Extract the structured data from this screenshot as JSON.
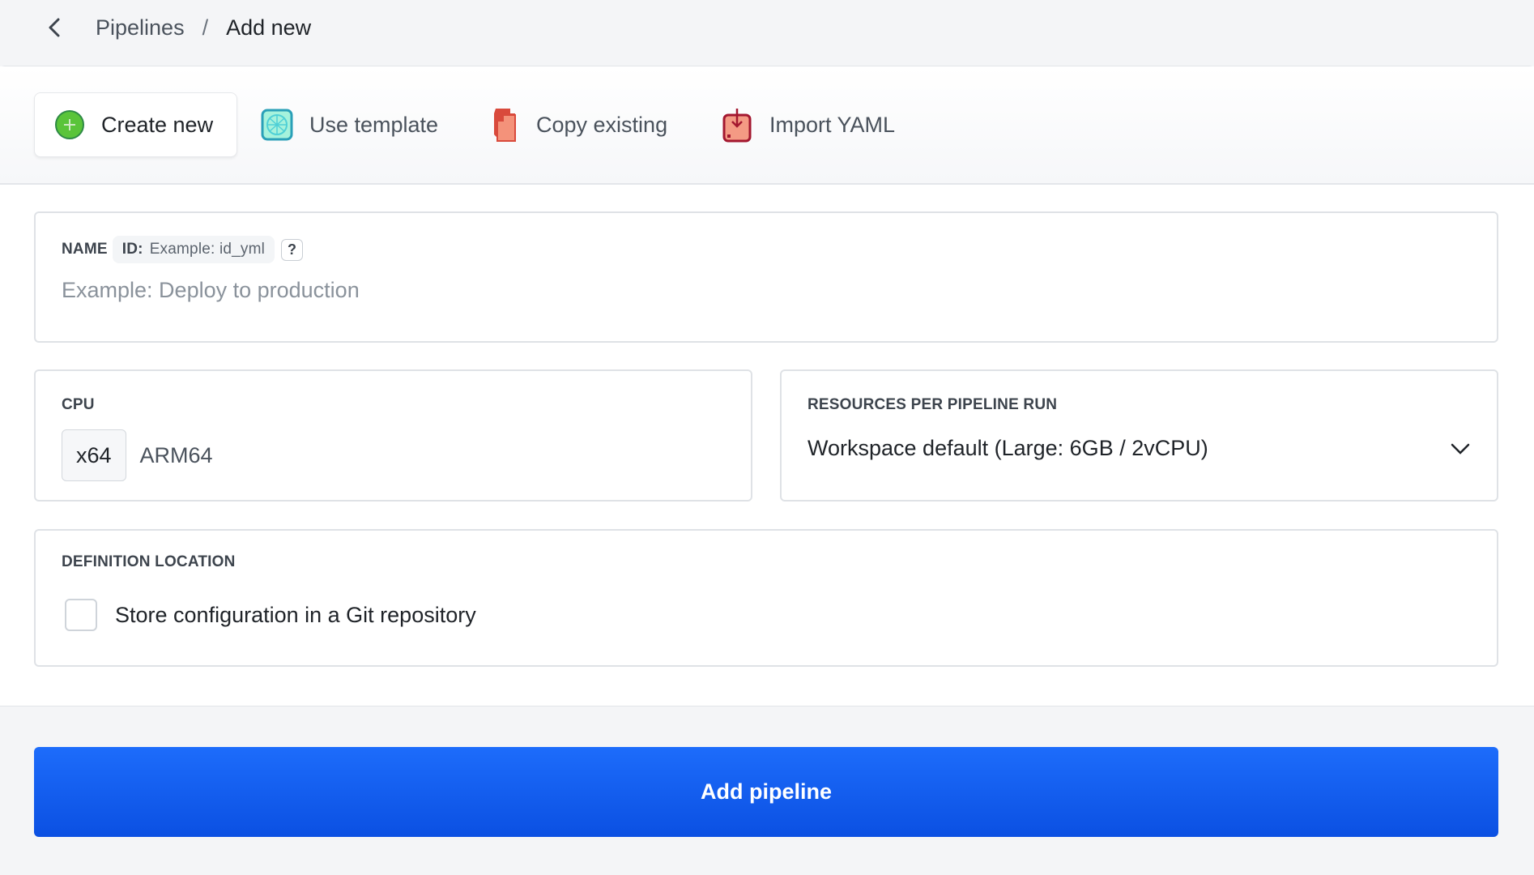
{
  "breadcrumb": {
    "parent": "Pipelines",
    "separator": "/",
    "current": "Add new"
  },
  "tabs": [
    {
      "label": "Create new",
      "icon": "plus-circle-icon",
      "active": true
    },
    {
      "label": "Use template",
      "icon": "template-icon",
      "active": false
    },
    {
      "label": "Copy existing",
      "icon": "copy-icon",
      "active": false
    },
    {
      "label": "Import YAML",
      "icon": "import-icon",
      "active": false
    }
  ],
  "name_field": {
    "label": "NAME",
    "id_label": "ID:",
    "id_placeholder": "Example: id_yml",
    "help": "?",
    "placeholder": "Example: Deploy to production",
    "value": ""
  },
  "cpu": {
    "label": "CPU",
    "options": [
      "x64",
      "ARM64"
    ],
    "selected": "x64"
  },
  "resources": {
    "label": "RESOURCES PER PIPELINE RUN",
    "value": "Workspace default (Large: 6GB / 2vCPU)"
  },
  "definition": {
    "label": "DEFINITION LOCATION",
    "checkbox_label": "Store configuration in a Git repository",
    "checked": false
  },
  "submit": {
    "label": "Add pipeline"
  },
  "colors": {
    "primary": "#1d6cfb",
    "green": "#5ac43a"
  }
}
